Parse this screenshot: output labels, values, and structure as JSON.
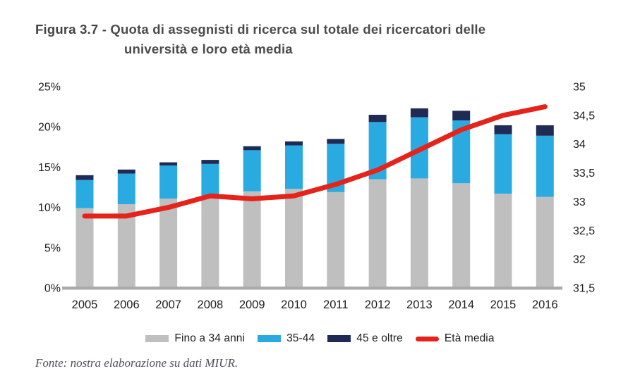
{
  "title": {
    "prefix": "Figura 3.7",
    "line1_rest": " - Quota di assegnisti di ricerca sul totale dei ricercatori delle",
    "line2": "università e loro età media"
  },
  "source": "Fonte: nostra elaborazione su dati MIUR.",
  "colors": {
    "bar_gray": "#bfbfbf",
    "bar_blue": "#29abe2",
    "bar_navy": "#1f2b54",
    "line_red": "#e5231b",
    "axis_line": "#ababab",
    "text_dark": "#1d1d1b",
    "title_gray": "#4b4b4a"
  },
  "chart_data": {
    "type": "bar",
    "stacked": true,
    "legend_position": "bottom",
    "grid": false,
    "categories": [
      "2005",
      "2006",
      "2007",
      "2008",
      "2009",
      "2010",
      "2011",
      "2012",
      "2013",
      "2014",
      "2015",
      "2016"
    ],
    "series": [
      {
        "name": "Fino a 34 anni",
        "type": "bar",
        "axis": "left",
        "color": "#bfbfbf",
        "values": [
          9.9,
          10.4,
          11.1,
          11.3,
          12.0,
          12.3,
          11.9,
          13.5,
          13.6,
          13.0,
          11.7,
          11.3
        ]
      },
      {
        "name": "35-44",
        "type": "bar",
        "axis": "left",
        "color": "#29abe2",
        "values": [
          3.5,
          3.8,
          4.1,
          4.1,
          5.1,
          5.4,
          6.0,
          7.1,
          7.6,
          7.8,
          7.4,
          7.6
        ]
      },
      {
        "name": "45 e oltre",
        "type": "bar",
        "axis": "left",
        "color": "#1f2b54",
        "values": [
          0.6,
          0.5,
          0.4,
          0.5,
          0.5,
          0.5,
          0.6,
          0.9,
          1.1,
          1.2,
          1.1,
          1.3
        ]
      },
      {
        "name": "Età media",
        "type": "line",
        "axis": "right",
        "color": "#e5231b",
        "values": [
          32.75,
          32.75,
          32.9,
          33.1,
          33.05,
          33.1,
          33.3,
          33.55,
          33.9,
          34.25,
          34.5,
          34.65
        ]
      }
    ],
    "left_axis": {
      "min": 0,
      "max": 25,
      "ticks": [
        {
          "value": 0,
          "label": "0%"
        },
        {
          "value": 5,
          "label": "5%"
        },
        {
          "value": 10,
          "label": "10%"
        },
        {
          "value": 15,
          "label": "15%"
        },
        {
          "value": 20,
          "label": "20%"
        },
        {
          "value": 25,
          "label": "25%"
        }
      ]
    },
    "right_axis": {
      "min": 31.5,
      "max": 35,
      "ticks": [
        {
          "value": 31.5,
          "label": "31,5"
        },
        {
          "value": 32,
          "label": "32"
        },
        {
          "value": 32.5,
          "label": "32,5"
        },
        {
          "value": 33,
          "label": "33"
        },
        {
          "value": 33.5,
          "label": "33,5"
        },
        {
          "value": 34,
          "label": "34"
        },
        {
          "value": 34.5,
          "label": "34,5"
        },
        {
          "value": 35,
          "label": "35"
        }
      ]
    }
  }
}
